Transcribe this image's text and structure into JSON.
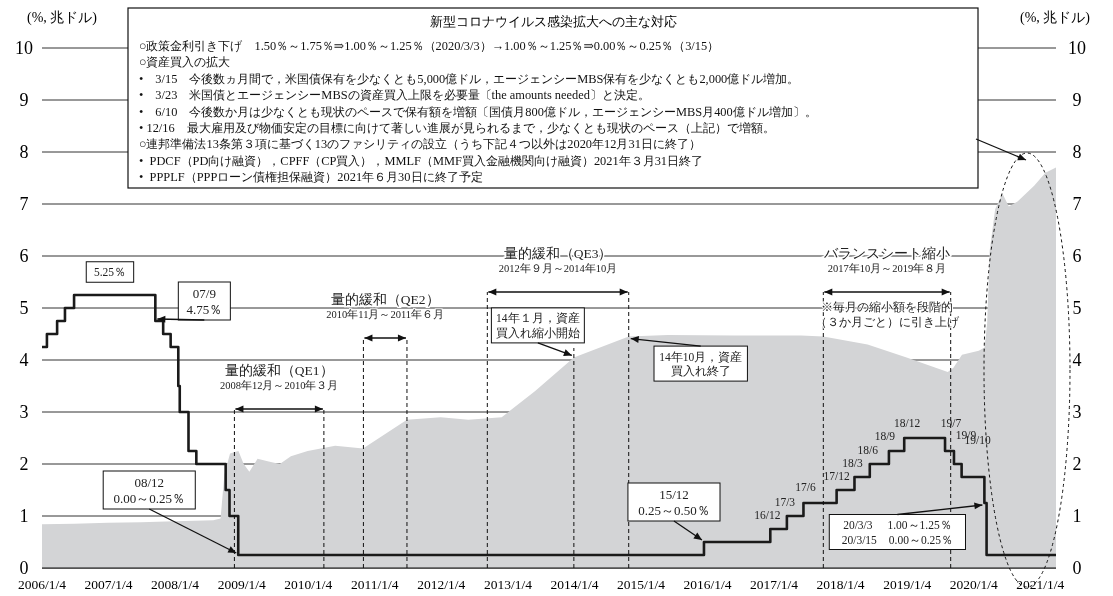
{
  "chart_data": {
    "type": "step",
    "title": "新型コロナウイルス感染拡大への主な対応",
    "subtitle": "○政策金利引き下げ　1.50％～1.75％⇒1.00％～1.25％（2020/3/3）→1.00％～1.25％⇒0.00％～0.25％（3/15）\n○資産買入の拡大\n•　3/15　今後数ヵ月間で，米国債保有を少なくとも5,000億ドル，エージェンシーMBS保有を少なくとも2,000億ドル増加。\n•　3/23　米国債とエージェンシーMBSの資産買入上限を必要量〔the amounts needed〕と決定。\n•　6/10　今後数か月は少なくとも現状のペースで保有額を増額〔国債月800億ドル，エージェンシーMBS月400億ドル増加〕。\n• 12/16　最大雇用及び物価安定の目標に向けて著しい進展が見られるまで，少なくとも現状のペース（上記）で増額。\n○連邦準備法13条第３項に基づく13のファシリティの設立（うち下記４つ以外は2020年12月31日に終了）\n•  PDCF（PD向け融資），CPFF（CP買入），MMLF（MMF買入金融機関向け融資）2021年３月31日終了\n•  PPPLF（PPPローン債権担保融資）2021年６月30日に終了予定",
    "ylabel": "(%, 兆ドル)",
    "y2label": "(%, 兆ドル)",
    "xlim": [
      "2006-01-04",
      "2021-03-31"
    ],
    "xticks": [
      {
        "value": "2006-01-04",
        "label": "2006/1/4"
      },
      {
        "value": "2007-01-04",
        "label": "2007/1/4"
      },
      {
        "value": "2008-01-04",
        "label": "2008/1/4"
      },
      {
        "value": "2009-01-04",
        "label": "2009/1/4"
      },
      {
        "value": "2010-01-04",
        "label": "2010/1/4"
      },
      {
        "value": "2011-01-04",
        "label": "2011/1/4"
      },
      {
        "value": "2012-01-04",
        "label": "2012/1/4"
      },
      {
        "value": "2013-01-04",
        "label": "2013/1/4"
      },
      {
        "value": "2014-01-04",
        "label": "2014/1/4"
      },
      {
        "value": "2015-01-04",
        "label": "2015/1/4"
      },
      {
        "value": "2016-01-04",
        "label": "2016/1/4"
      },
      {
        "value": "2017-01-04",
        "label": "2017/1/4"
      },
      {
        "value": "2018-01-04",
        "label": "2018/1/4"
      },
      {
        "value": "2019-01-04",
        "label": "2019/1/4"
      },
      {
        "value": "2020-01-04",
        "label": "2020/1/4"
      },
      {
        "value": "2021-01-04",
        "label": "2021/1/4"
      }
    ],
    "ylim": [
      0,
      10
    ],
    "yticks": [
      0,
      1,
      2,
      3,
      4,
      5,
      6,
      7,
      8,
      9,
      10
    ],
    "y2lim": [
      0,
      10
    ],
    "y2ticks": [
      0,
      1,
      2,
      3,
      4,
      5,
      6,
      7,
      8,
      9,
      10
    ],
    "grid": "y",
    "series": [
      {
        "type": "area",
        "color": "#d3d4d6",
        "x": [
          "2006-01-04",
          "2006-07-01",
          "2007-01-01",
          "2007-07-01",
          "2008-01-01",
          "2008-08-01",
          "2008-09-10",
          "2008-10-01",
          "2008-11-01",
          "2008-12-17",
          "2009-01-15",
          "2009-02-15",
          "2009-04-01",
          "2009-06-01",
          "2009-08-01",
          "2009-10-01",
          "2010-01-01",
          "2010-06-01",
          "2010-11-01",
          "2011-06-30",
          "2012-01-01",
          "2012-06-01",
          "2012-12-01",
          "2013-06-01",
          "2014-01-01",
          "2014-10-29",
          "2015-06-01",
          "2016-06-01",
          "2017-06-01",
          "2017-10-01",
          "2018-06-01",
          "2019-01-01",
          "2019-08-15",
          "2019-09-15",
          "2019-11-01",
          "2020-02-01",
          "2020-03-04",
          "2020-03-18",
          "2020-04-01",
          "2020-05-01",
          "2020-06-10",
          "2020-07-15",
          "2020-09-01",
          "2020-12-01",
          "2021-02-01",
          "2021-03-31"
        ],
        "values": [
          0.84,
          0.85,
          0.87,
          0.88,
          0.9,
          0.92,
          0.95,
          1.8,
          2.2,
          2.25,
          2.0,
          1.85,
          2.1,
          2.05,
          2.0,
          2.15,
          2.25,
          2.35,
          2.3,
          2.85,
          2.9,
          2.85,
          2.9,
          3.4,
          4.05,
          4.45,
          4.48,
          4.47,
          4.47,
          4.45,
          4.3,
          4.05,
          3.77,
          3.85,
          4.1,
          4.18,
          4.24,
          4.7,
          6.1,
          6.9,
          7.2,
          6.95,
          7.05,
          7.35,
          7.6,
          7.7
        ]
      },
      {
        "color": "#1a1a1a",
        "x": [
          "2006-01-04",
          "2006-01-31",
          "2006-03-28",
          "2006-05-10",
          "2006-06-29",
          "2007-09-18",
          "2007-10-31",
          "2007-12-11",
          "2008-01-22",
          "2008-01-30",
          "2008-03-18",
          "2008-04-30",
          "2008-10-08",
          "2008-10-29",
          "2008-12-16",
          "2015-12-16",
          "2016-12-14",
          "2017-03-15",
          "2017-06-14",
          "2017-12-13",
          "2018-03-21",
          "2018-06-13",
          "2018-09-26",
          "2018-12-19",
          "2019-07-31",
          "2019-09-18",
          "2019-10-30",
          "2020-03-03",
          "2020-03-15",
          "2021-03-31"
        ],
        "values": [
          4.25,
          4.5,
          4.75,
          5.0,
          5.25,
          4.75,
          4.5,
          4.25,
          3.5,
          3.0,
          2.25,
          2.0,
          1.5,
          1.0,
          0.25,
          0.5,
          0.75,
          1.0,
          1.25,
          1.5,
          1.75,
          2.0,
          2.25,
          2.5,
          2.25,
          2.0,
          1.75,
          1.25,
          0.25,
          0.25
        ]
      }
    ],
    "ref_lines": [
      {
        "axis": "x",
        "value": "2008-11-25",
        "label": null,
        "line_style": "dashed"
      },
      {
        "axis": "x",
        "value": "2010-03-31",
        "label": null,
        "line_style": "dashed"
      },
      {
        "axis": "x",
        "value": "2010-11-03",
        "label": null,
        "line_style": "dashed"
      },
      {
        "axis": "x",
        "value": "2011-06-30",
        "label": null,
        "line_style": "dashed"
      },
      {
        "axis": "x",
        "value": "2012-09-13",
        "label": null,
        "line_style": "dashed"
      },
      {
        "axis": "x",
        "value": "2014-10-29",
        "label": null,
        "line_style": "dashed"
      },
      {
        "axis": "x",
        "value": "2017-10-01",
        "label": null,
        "line_style": "dashed"
      },
      {
        "axis": "x",
        "value": "2019-08-31",
        "label": null,
        "line_style": "dashed"
      },
      {
        "axis": "x",
        "value": "2014-01-01",
        "label": null,
        "line_style": "dashed"
      }
    ],
    "annotations": [
      "量的緩和（QE1）",
      "2008年12月～2010年３月",
      "量的緩和（QE2）",
      "2010年11月～2011年６月",
      "量的緩和（QE3）",
      "2012年９月～2014年10月",
      "バランスシート縮小",
      "2017年10月～2019年８月",
      "※毎月の縮小額を段階的（３か月ごと）に引き上げ",
      {
        "text": "5.25％",
        "x": "2007-01-01",
        "y": 5.25
      },
      {
        "text": "07/9\n4.75％",
        "x": "2007-09-18",
        "y": 4.75
      },
      {
        "text": "08/12\n0.00～0.25％",
        "x": "2008-12-16",
        "y": 0.25
      },
      {
        "text": "14年１月，資産買入れ縮小開始",
        "x": "2014-01-01",
        "y": 4.05
      },
      {
        "text": "14年10月，資産買入れ終了",
        "x": "2014-10-29",
        "y": 4.45
      },
      {
        "text": "15/12\n0.25～0.50％",
        "x": "2015-12-16",
        "y": 0.5
      },
      {
        "text": "16/12",
        "x": "2016-12-14",
        "y": 0.75
      },
      {
        "text": "17/3",
        "x": "2017-03-15",
        "y": 1.0
      },
      {
        "text": "17/6",
        "x": "2017-06-14",
        "y": 1.25
      },
      {
        "text": "17/12",
        "x": "2017-12-13",
        "y": 1.5
      },
      {
        "text": "18/3",
        "x": "2018-03-21",
        "y": 1.75
      },
      {
        "text": "18/6",
        "x": "2018-06-13",
        "y": 2.0
      },
      {
        "text": "18/9",
        "x": "2018-09-26",
        "y": 2.25
      },
      {
        "text": "18/12",
        "x": "2018-12-19",
        "y": 2.5
      },
      {
        "text": "19/7",
        "x": "2019-07-31",
        "y": 2.5
      },
      {
        "text": "19/9",
        "x": "2019-09-18",
        "y": 2.25
      },
      {
        "text": "19/10",
        "x": "2019-10-30",
        "y": 2.0
      },
      {
        "text": "20/3/3　 1.00～1.25％\n20/3/15　0.00～0.25％",
        "x": "2020-03-03",
        "y": 1.25
      }
    ]
  }
}
